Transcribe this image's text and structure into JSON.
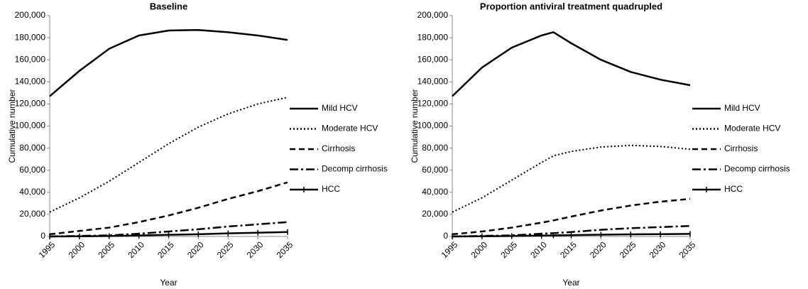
{
  "chart_data": [
    {
      "type": "line",
      "title": "Baseline",
      "xlabel": "Year",
      "ylabel": "Cumulative number",
      "x": [
        1995,
        2000,
        2005,
        2010,
        2015,
        2020,
        2025,
        2030,
        2035
      ],
      "series": [
        {
          "name": "Mild HCV",
          "color": "#000000",
          "style": "solid",
          "values": [
            127000,
            150000,
            170000,
            182000,
            186500,
            187000,
            185000,
            182000,
            178000
          ]
        },
        {
          "name": "Moderate HCV",
          "color": "#000000",
          "style": "dotted",
          "values": [
            22000,
            35000,
            50000,
            67000,
            84000,
            99000,
            111000,
            120000,
            126000
          ]
        },
        {
          "name": "Cirrhosis",
          "color": "#000000",
          "style": "dashed",
          "values": [
            2000,
            5000,
            8000,
            13000,
            19000,
            26000,
            34000,
            41000,
            49000
          ]
        },
        {
          "name": "Decomp cirrhosis",
          "color": "#000000",
          "style": "dashdot",
          "values": [
            0,
            500,
            1000,
            2500,
            4500,
            6500,
            9000,
            11000,
            13000
          ]
        },
        {
          "name": "HCC",
          "color": "#000000",
          "style": "plus",
          "values": [
            0,
            200,
            400,
            900,
            1500,
            2000,
            2800,
            3400,
            4000
          ]
        }
      ],
      "xlim": [
        1995,
        2035
      ],
      "xticks": [
        1995,
        2000,
        2005,
        2010,
        2015,
        2020,
        2025,
        2030,
        2035
      ],
      "ylim": [
        0,
        200000
      ],
      "yticks": [
        0,
        {
          "value": 20000,
          "label": "20,000"
        },
        {
          "value": 40000,
          "label": "40,000"
        },
        {
          "value": 60000,
          "label": "60,000"
        },
        {
          "value": 80000,
          "label": "80,000"
        },
        {
          "value": 100000,
          "label": "100,000"
        },
        {
          "value": 120000,
          "label": "120,000"
        },
        {
          "value": 140000,
          "label": "140,000"
        },
        {
          "value": 160000,
          "label": "160,000"
        },
        {
          "value": 180000,
          "label": "180,000"
        },
        {
          "value": 200000,
          "label": "200,000"
        }
      ],
      "grid": false,
      "legend": "right"
    },
    {
      "type": "line",
      "title": "Proportion antiviral treatment quadrupled",
      "xlabel": "Year",
      "ylabel": "Cumulative number",
      "x": [
        1995,
        2000,
        2005,
        2010,
        2012,
        2015,
        2020,
        2025,
        2030,
        2035
      ],
      "series": [
        {
          "name": "Mild HCV",
          "color": "#000000",
          "style": "solid",
          "values": [
            127000,
            153000,
            171000,
            182000,
            185000,
            175000,
            160000,
            149000,
            142000,
            137000
          ]
        },
        {
          "name": "Moderate HCV",
          "color": "#000000",
          "style": "dotted",
          "values": [
            22000,
            35000,
            51000,
            67000,
            73000,
            77000,
            81000,
            82500,
            81500,
            79000
          ]
        },
        {
          "name": "Cirrhosis",
          "color": "#000000",
          "style": "dashed",
          "values": [
            2000,
            4500,
            8000,
            12500,
            14500,
            18000,
            23500,
            28000,
            31500,
            34000
          ]
        },
        {
          "name": "Decomp cirrhosis",
          "color": "#000000",
          "style": "dashdot",
          "values": [
            0,
            500,
            1000,
            2500,
            3000,
            4000,
            6000,
            7500,
            8500,
            9500
          ]
        },
        {
          "name": "HCC",
          "color": "#000000",
          "style": "plus",
          "values": [
            0,
            200,
            400,
            800,
            1000,
            1200,
            1600,
            1900,
            2100,
            2300
          ]
        }
      ],
      "xlim": [
        1995,
        2035
      ],
      "xticks": [
        1995,
        2000,
        2005,
        2010,
        2015,
        2020,
        2025,
        2030,
        2035
      ],
      "ylim": [
        0,
        200000
      ],
      "yticks": [
        0,
        {
          "value": 20000,
          "label": "20,000"
        },
        {
          "value": 40000,
          "label": "40,000"
        },
        {
          "value": 60000,
          "label": "60,000"
        },
        {
          "value": 80000,
          "label": "80,000"
        },
        {
          "value": 100000,
          "label": "100,000"
        },
        {
          "value": 120000,
          "label": "120,000"
        },
        {
          "value": 140000,
          "label": "140,000"
        },
        {
          "value": 160000,
          "label": "160,000"
        },
        {
          "value": 180000,
          "label": "180,000"
        },
        {
          "value": 200000,
          "label": "200,000"
        }
      ],
      "grid": false,
      "legend": "right"
    }
  ]
}
